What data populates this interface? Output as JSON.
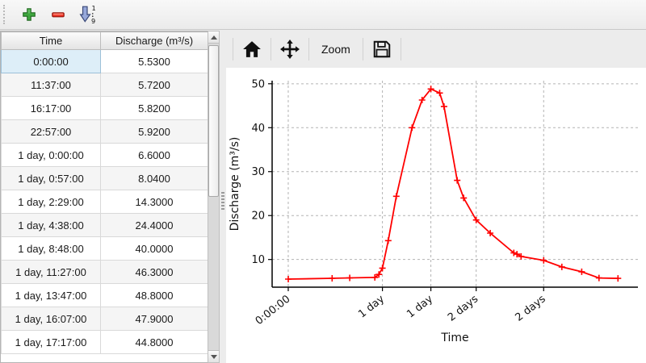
{
  "main_toolbar": {
    "buttons": [
      {
        "name": "add-row",
        "icon": "plus-icon",
        "color": "#3fa73f"
      },
      {
        "name": "remove-row",
        "icon": "minus-icon",
        "color": "#ee3224"
      },
      {
        "name": "sort-ascending",
        "icon": "sort-numeric-down-icon",
        "color": "#97a8da",
        "digits_top": "1",
        "digits_bottom": "9"
      }
    ]
  },
  "table": {
    "columns": [
      "Time",
      "Discharge (m³/s)"
    ],
    "selected": {
      "row": 0,
      "col": 0
    },
    "rows": [
      [
        "0:00:00",
        "5.5300"
      ],
      [
        "11:37:00",
        "5.7200"
      ],
      [
        "16:17:00",
        "5.8200"
      ],
      [
        "22:57:00",
        "5.9200"
      ],
      [
        "1 day, 0:00:00",
        "6.6000"
      ],
      [
        "1 day, 0:57:00",
        "8.0400"
      ],
      [
        "1 day, 2:29:00",
        "14.3000"
      ],
      [
        "1 day, 4:38:00",
        "24.4000"
      ],
      [
        "1 day, 8:48:00",
        "40.0000"
      ],
      [
        "1 day, 11:27:00",
        "46.3000"
      ],
      [
        "1 day, 13:47:00",
        "48.8000"
      ],
      [
        "1 day, 16:07:00",
        "47.9000"
      ],
      [
        "1 day, 17:17:00",
        "44.8000"
      ]
    ]
  },
  "chart_toolbar": {
    "buttons": [
      {
        "name": "home",
        "icon": "home-icon"
      },
      {
        "name": "pan",
        "icon": "move-arrows-icon"
      },
      {
        "name": "zoom",
        "label": "Zoom"
      },
      {
        "name": "save",
        "icon": "floppy-disk-icon"
      }
    ]
  },
  "chart_data": {
    "type": "line",
    "title": "",
    "xlabel": "Time",
    "ylabel": "Discharge (m³/s)",
    "grid": true,
    "legend": "none",
    "xlim_days": [
      -0.178,
      3.86
    ],
    "ylim": [
      3.7,
      50.7
    ],
    "yticks": [
      10,
      20,
      30,
      40,
      50
    ],
    "xticks": [
      {
        "t_days": 0.0,
        "label": "0:00:00"
      },
      {
        "t_days": 1.0396,
        "label": "1 day"
      },
      {
        "t_days": 1.5743,
        "label": "1 day"
      },
      {
        "t_days": 2.0745,
        "label": "2 days"
      },
      {
        "t_days": 2.8194,
        "label": "2 days"
      }
    ],
    "series": [
      {
        "name": "Discharge",
        "color": "#ff0000",
        "marker": "plus",
        "x_days": [
          0,
          0.484,
          0.6785,
          0.956,
          1.0,
          1.0396,
          1.1035,
          1.1931,
          1.3667,
          1.4771,
          1.5743,
          1.6715,
          1.7201,
          1.865,
          1.936,
          2.0745,
          2.23,
          2.49,
          2.525,
          2.57,
          2.8194,
          3.02,
          3.24,
          3.43,
          3.64
        ],
        "values": [
          5.53,
          5.72,
          5.82,
          5.92,
          6.6,
          8.04,
          14.3,
          24.4,
          40.0,
          46.3,
          48.8,
          47.9,
          44.8,
          28.0,
          24.0,
          19.0,
          16.0,
          11.5,
          11.2,
          10.7,
          9.8,
          8.3,
          7.2,
          5.8,
          5.7
        ]
      }
    ]
  },
  "colors": {
    "grid": "#b3b3b3",
    "selected_cell_bg": "#ddeef8",
    "toolbar_bg": "#ececec"
  }
}
